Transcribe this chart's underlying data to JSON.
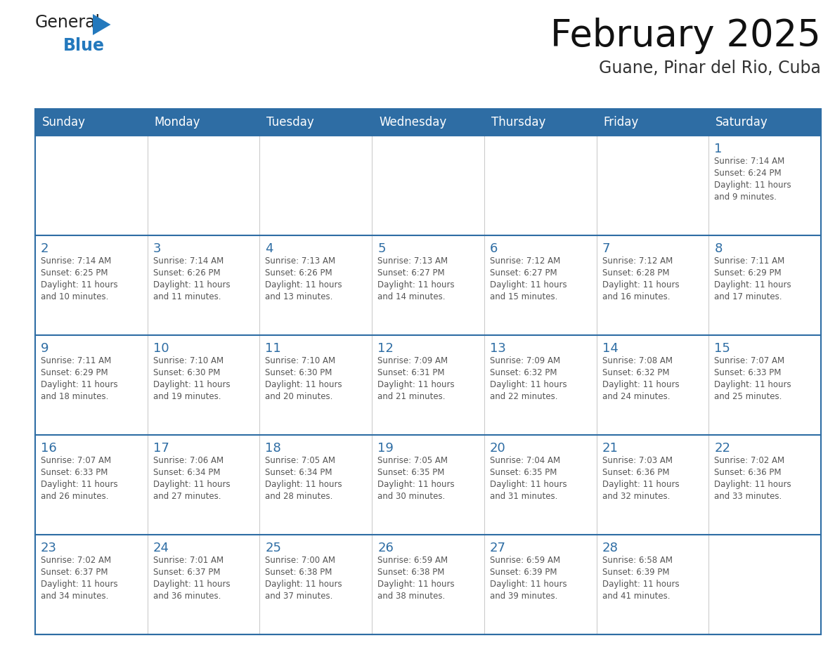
{
  "title": "February 2025",
  "subtitle": "Guane, Pinar del Rio, Cuba",
  "days_of_week": [
    "Sunday",
    "Monday",
    "Tuesday",
    "Wednesday",
    "Thursday",
    "Friday",
    "Saturday"
  ],
  "header_bg": "#2E6DA4",
  "header_text": "#FFFFFF",
  "day_number_color": "#2E6DA4",
  "text_color": "#555555",
  "logo_general_color": "#222222",
  "logo_blue_color": "#2479BD",
  "calendar_data": [
    {
      "day": 1,
      "row": 0,
      "col": 6,
      "sunrise": "7:14 AM",
      "sunset": "6:24 PM",
      "daylight_hours": 11,
      "daylight_minutes": 9
    },
    {
      "day": 2,
      "row": 1,
      "col": 0,
      "sunrise": "7:14 AM",
      "sunset": "6:25 PM",
      "daylight_hours": 11,
      "daylight_minutes": 10
    },
    {
      "day": 3,
      "row": 1,
      "col": 1,
      "sunrise": "7:14 AM",
      "sunset": "6:26 PM",
      "daylight_hours": 11,
      "daylight_minutes": 11
    },
    {
      "day": 4,
      "row": 1,
      "col": 2,
      "sunrise": "7:13 AM",
      "sunset": "6:26 PM",
      "daylight_hours": 11,
      "daylight_minutes": 13
    },
    {
      "day": 5,
      "row": 1,
      "col": 3,
      "sunrise": "7:13 AM",
      "sunset": "6:27 PM",
      "daylight_hours": 11,
      "daylight_minutes": 14
    },
    {
      "day": 6,
      "row": 1,
      "col": 4,
      "sunrise": "7:12 AM",
      "sunset": "6:27 PM",
      "daylight_hours": 11,
      "daylight_minutes": 15
    },
    {
      "day": 7,
      "row": 1,
      "col": 5,
      "sunrise": "7:12 AM",
      "sunset": "6:28 PM",
      "daylight_hours": 11,
      "daylight_minutes": 16
    },
    {
      "day": 8,
      "row": 1,
      "col": 6,
      "sunrise": "7:11 AM",
      "sunset": "6:29 PM",
      "daylight_hours": 11,
      "daylight_minutes": 17
    },
    {
      "day": 9,
      "row": 2,
      "col": 0,
      "sunrise": "7:11 AM",
      "sunset": "6:29 PM",
      "daylight_hours": 11,
      "daylight_minutes": 18
    },
    {
      "day": 10,
      "row": 2,
      "col": 1,
      "sunrise": "7:10 AM",
      "sunset": "6:30 PM",
      "daylight_hours": 11,
      "daylight_minutes": 19
    },
    {
      "day": 11,
      "row": 2,
      "col": 2,
      "sunrise": "7:10 AM",
      "sunset": "6:30 PM",
      "daylight_hours": 11,
      "daylight_minutes": 20
    },
    {
      "day": 12,
      "row": 2,
      "col": 3,
      "sunrise": "7:09 AM",
      "sunset": "6:31 PM",
      "daylight_hours": 11,
      "daylight_minutes": 21
    },
    {
      "day": 13,
      "row": 2,
      "col": 4,
      "sunrise": "7:09 AM",
      "sunset": "6:32 PM",
      "daylight_hours": 11,
      "daylight_minutes": 22
    },
    {
      "day": 14,
      "row": 2,
      "col": 5,
      "sunrise": "7:08 AM",
      "sunset": "6:32 PM",
      "daylight_hours": 11,
      "daylight_minutes": 24
    },
    {
      "day": 15,
      "row": 2,
      "col": 6,
      "sunrise": "7:07 AM",
      "sunset": "6:33 PM",
      "daylight_hours": 11,
      "daylight_minutes": 25
    },
    {
      "day": 16,
      "row": 3,
      "col": 0,
      "sunrise": "7:07 AM",
      "sunset": "6:33 PM",
      "daylight_hours": 11,
      "daylight_minutes": 26
    },
    {
      "day": 17,
      "row": 3,
      "col": 1,
      "sunrise": "7:06 AM",
      "sunset": "6:34 PM",
      "daylight_hours": 11,
      "daylight_minutes": 27
    },
    {
      "day": 18,
      "row": 3,
      "col": 2,
      "sunrise": "7:05 AM",
      "sunset": "6:34 PM",
      "daylight_hours": 11,
      "daylight_minutes": 28
    },
    {
      "day": 19,
      "row": 3,
      "col": 3,
      "sunrise": "7:05 AM",
      "sunset": "6:35 PM",
      "daylight_hours": 11,
      "daylight_minutes": 30
    },
    {
      "day": 20,
      "row": 3,
      "col": 4,
      "sunrise": "7:04 AM",
      "sunset": "6:35 PM",
      "daylight_hours": 11,
      "daylight_minutes": 31
    },
    {
      "day": 21,
      "row": 3,
      "col": 5,
      "sunrise": "7:03 AM",
      "sunset": "6:36 PM",
      "daylight_hours": 11,
      "daylight_minutes": 32
    },
    {
      "day": 22,
      "row": 3,
      "col": 6,
      "sunrise": "7:02 AM",
      "sunset": "6:36 PM",
      "daylight_hours": 11,
      "daylight_minutes": 33
    },
    {
      "day": 23,
      "row": 4,
      "col": 0,
      "sunrise": "7:02 AM",
      "sunset": "6:37 PM",
      "daylight_hours": 11,
      "daylight_minutes": 34
    },
    {
      "day": 24,
      "row": 4,
      "col": 1,
      "sunrise": "7:01 AM",
      "sunset": "6:37 PM",
      "daylight_hours": 11,
      "daylight_minutes": 36
    },
    {
      "day": 25,
      "row": 4,
      "col": 2,
      "sunrise": "7:00 AM",
      "sunset": "6:38 PM",
      "daylight_hours": 11,
      "daylight_minutes": 37
    },
    {
      "day": 26,
      "row": 4,
      "col": 3,
      "sunrise": "6:59 AM",
      "sunset": "6:38 PM",
      "daylight_hours": 11,
      "daylight_minutes": 38
    },
    {
      "day": 27,
      "row": 4,
      "col": 4,
      "sunrise": "6:59 AM",
      "sunset": "6:39 PM",
      "daylight_hours": 11,
      "daylight_minutes": 39
    },
    {
      "day": 28,
      "row": 4,
      "col": 5,
      "sunrise": "6:58 AM",
      "sunset": "6:39 PM",
      "daylight_hours": 11,
      "daylight_minutes": 41
    }
  ],
  "num_rows": 5,
  "num_cols": 7,
  "fig_width": 11.88,
  "fig_height": 9.18,
  "dpi": 100
}
